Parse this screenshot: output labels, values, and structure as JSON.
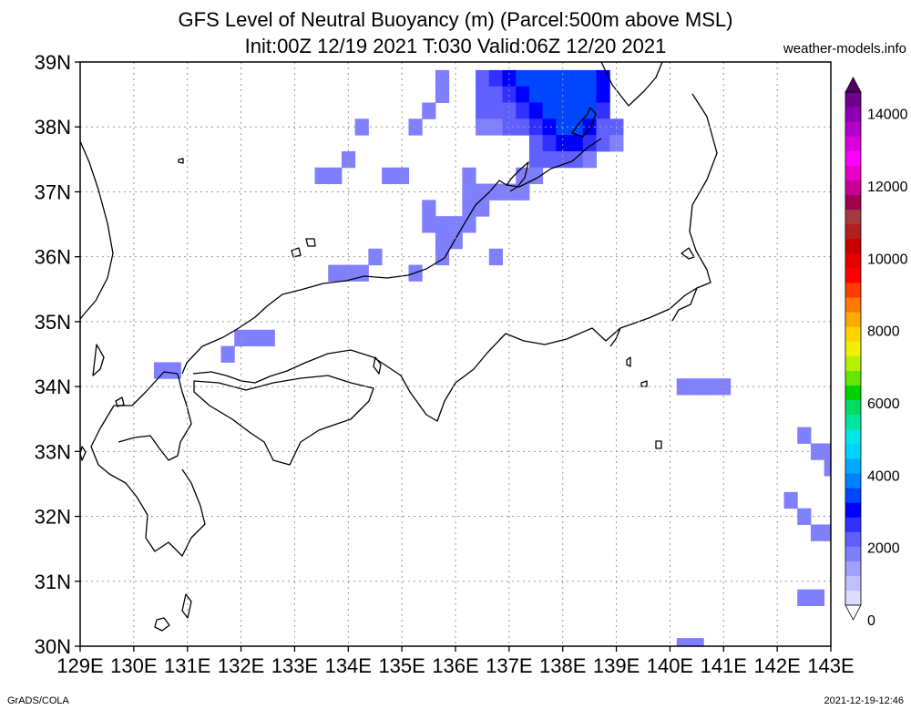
{
  "chart_data": {
    "type": "heatmap",
    "title": "GFS Level of Neutral Buoyancy (m) (Parcel:500m above MSL)",
    "subtitle": "Init:00Z 12/19 2021 T:030 Valid:06Z 12/20 2021",
    "source": "weather-models.info",
    "credit": "GrADS/COLA",
    "timestamp": "2021-12-19-12:46",
    "x_ticks": [
      "129E",
      "130E",
      "131E",
      "132E",
      "133E",
      "134E",
      "135E",
      "136E",
      "137E",
      "138E",
      "139E",
      "140E",
      "141E",
      "142E",
      "143E"
    ],
    "y_ticks": [
      "30N",
      "31N",
      "32N",
      "33N",
      "34N",
      "35N",
      "36N",
      "37N",
      "38N",
      "39N"
    ],
    "xlim": [
      129,
      143
    ],
    "ylim": [
      30,
      39
    ],
    "grid": true,
    "colorbar": {
      "ticks": [
        "0",
        "2000",
        "4000",
        "6000",
        "8000",
        "10000",
        "12000",
        "14000"
      ],
      "range": [
        0,
        15000
      ],
      "colors": [
        "#ffffff",
        "#dcdcff",
        "#c0c0ff",
        "#a0a0ff",
        "#8080ff",
        "#6060ff",
        "#3030ff",
        "#0000ff",
        "#0046ff",
        "#0082ff",
        "#00aaff",
        "#00d2ff",
        "#00e6e6",
        "#00e6a0",
        "#00dc64",
        "#00d200",
        "#64e600",
        "#b4f000",
        "#f0f000",
        "#ffd200",
        "#ffaa00",
        "#ff7800",
        "#ff3c00",
        "#ff0000",
        "#e60000",
        "#c80000",
        "#b41e1e",
        "#a03c3c",
        "#a00050",
        "#c80096",
        "#e600c8",
        "#ff00ff",
        "#dc00dc",
        "#b400c8",
        "#8c00b4",
        "#6e008c",
        "#500064"
      ]
    },
    "cells": [
      {
        "lon": 135.75,
        "lat": 38.75,
        "lev": 2000
      },
      {
        "lon": 135.75,
        "lat": 38.5,
        "lev": 2000
      },
      {
        "lon": 135.5,
        "lat": 38.25,
        "lev": 2000
      },
      {
        "lon": 134.25,
        "lat": 38.0,
        "lev": 2000
      },
      {
        "lon": 135.25,
        "lat": 38.0,
        "lev": 2000
      },
      {
        "lon": 134.0,
        "lat": 37.5,
        "lev": 2000
      },
      {
        "lon": 133.5,
        "lat": 37.25,
        "lev": 2000
      },
      {
        "lon": 133.75,
        "lat": 37.25,
        "lev": 2000
      },
      {
        "lon": 134.75,
        "lat": 37.25,
        "lev": 2000
      },
      {
        "lon": 135.0,
        "lat": 37.25,
        "lev": 2000
      },
      {
        "lon": 136.25,
        "lat": 37.25,
        "lev": 2000
      },
      {
        "lon": 136.25,
        "lat": 37.0,
        "lev": 2000
      },
      {
        "lon": 136.5,
        "lat": 37.0,
        "lev": 2000
      },
      {
        "lon": 136.75,
        "lat": 37.0,
        "lev": 2000
      },
      {
        "lon": 137.0,
        "lat": 37.0,
        "lev": 2000
      },
      {
        "lon": 137.25,
        "lat": 37.0,
        "lev": 2000
      },
      {
        "lon": 135.5,
        "lat": 36.75,
        "lev": 2000
      },
      {
        "lon": 136.25,
        "lat": 36.75,
        "lev": 2000
      },
      {
        "lon": 136.5,
        "lat": 36.75,
        "lev": 2000
      },
      {
        "lon": 135.5,
        "lat": 36.5,
        "lev": 2000
      },
      {
        "lon": 135.75,
        "lat": 36.5,
        "lev": 2000
      },
      {
        "lon": 136.0,
        "lat": 36.5,
        "lev": 2000
      },
      {
        "lon": 136.25,
        "lat": 36.5,
        "lev": 2000
      },
      {
        "lon": 135.75,
        "lat": 36.25,
        "lev": 2000
      },
      {
        "lon": 136.0,
        "lat": 36.25,
        "lev": 2000
      },
      {
        "lon": 134.5,
        "lat": 36.0,
        "lev": 2000
      },
      {
        "lon": 135.75,
        "lat": 36.0,
        "lev": 2000
      },
      {
        "lon": 136.75,
        "lat": 36.0,
        "lev": 2000
      },
      {
        "lon": 133.75,
        "lat": 35.75,
        "lev": 2000
      },
      {
        "lon": 134.0,
        "lat": 35.75,
        "lev": 2000
      },
      {
        "lon": 134.25,
        "lat": 35.75,
        "lev": 2000
      },
      {
        "lon": 135.25,
        "lat": 35.75,
        "lev": 2000
      },
      {
        "lon": 132.0,
        "lat": 34.75,
        "lev": 2000
      },
      {
        "lon": 132.25,
        "lat": 34.75,
        "lev": 2000
      },
      {
        "lon": 132.5,
        "lat": 34.75,
        "lev": 2000
      },
      {
        "lon": 131.75,
        "lat": 34.5,
        "lev": 2000
      },
      {
        "lon": 130.5,
        "lat": 34.25,
        "lev": 2000
      },
      {
        "lon": 130.75,
        "lat": 34.25,
        "lev": 2000
      },
      {
        "lon": 140.25,
        "lat": 34.0,
        "lev": 2000
      },
      {
        "lon": 140.5,
        "lat": 34.0,
        "lev": 2000
      },
      {
        "lon": 140.75,
        "lat": 34.0,
        "lev": 2000
      },
      {
        "lon": 141.0,
        "lat": 34.0,
        "lev": 2000
      },
      {
        "lon": 142.5,
        "lat": 33.25,
        "lev": 2000
      },
      {
        "lon": 142.75,
        "lat": 33.0,
        "lev": 2000
      },
      {
        "lon": 143.0,
        "lat": 33.0,
        "lev": 2000
      },
      {
        "lon": 143.0,
        "lat": 32.75,
        "lev": 2000
      },
      {
        "lon": 142.25,
        "lat": 32.25,
        "lev": 2000
      },
      {
        "lon": 142.5,
        "lat": 32.0,
        "lev": 2000
      },
      {
        "lon": 142.75,
        "lat": 31.75,
        "lev": 2000
      },
      {
        "lon": 143.0,
        "lat": 31.75,
        "lev": 2000
      },
      {
        "lon": 142.5,
        "lat": 30.75,
        "lev": 2000
      },
      {
        "lon": 142.75,
        "lat": 30.75,
        "lev": 2000
      },
      {
        "lon": 140.25,
        "lat": 30.0,
        "lev": 2000
      },
      {
        "lon": 140.5,
        "lat": 30.0,
        "lev": 2000
      },
      {
        "lon": 136.5,
        "lat": 38.75,
        "lev": 2400
      },
      {
        "lon": 136.75,
        "lat": 38.75,
        "lev": 2700
      },
      {
        "lon": 137.0,
        "lat": 38.75,
        "lev": 3000
      },
      {
        "lon": 137.25,
        "lat": 38.75,
        "lev": 3300
      },
      {
        "lon": 137.5,
        "lat": 38.75,
        "lev": 3300
      },
      {
        "lon": 137.75,
        "lat": 38.75,
        "lev": 3300
      },
      {
        "lon": 138.0,
        "lat": 38.75,
        "lev": 3300
      },
      {
        "lon": 138.25,
        "lat": 38.75,
        "lev": 3300
      },
      {
        "lon": 138.5,
        "lat": 38.75,
        "lev": 3300
      },
      {
        "lon": 138.75,
        "lat": 38.75,
        "lev": 3000
      },
      {
        "lon": 136.5,
        "lat": 38.5,
        "lev": 2400
      },
      {
        "lon": 136.75,
        "lat": 38.5,
        "lev": 2400
      },
      {
        "lon": 137.0,
        "lat": 38.5,
        "lev": 2700
      },
      {
        "lon": 137.25,
        "lat": 38.5,
        "lev": 3000
      },
      {
        "lon": 137.5,
        "lat": 38.5,
        "lev": 3300
      },
      {
        "lon": 137.75,
        "lat": 38.5,
        "lev": 3300
      },
      {
        "lon": 138.0,
        "lat": 38.5,
        "lev": 3300
      },
      {
        "lon": 138.25,
        "lat": 38.5,
        "lev": 3300
      },
      {
        "lon": 138.5,
        "lat": 38.5,
        "lev": 3300
      },
      {
        "lon": 138.75,
        "lat": 38.5,
        "lev": 3000
      },
      {
        "lon": 136.5,
        "lat": 38.25,
        "lev": 2100
      },
      {
        "lon": 136.75,
        "lat": 38.25,
        "lev": 2100
      },
      {
        "lon": 137.0,
        "lat": 38.25,
        "lev": 2400
      },
      {
        "lon": 137.25,
        "lat": 38.25,
        "lev": 2700
      },
      {
        "lon": 137.5,
        "lat": 38.25,
        "lev": 3000
      },
      {
        "lon": 137.75,
        "lat": 38.25,
        "lev": 3300
      },
      {
        "lon": 138.0,
        "lat": 38.25,
        "lev": 3300
      },
      {
        "lon": 138.25,
        "lat": 38.25,
        "lev": 3300
      },
      {
        "lon": 138.5,
        "lat": 38.25,
        "lev": 3300
      },
      {
        "lon": 138.75,
        "lat": 38.25,
        "lev": 2700
      },
      {
        "lon": 136.5,
        "lat": 38.0,
        "lev": 2000
      },
      {
        "lon": 136.75,
        "lat": 38.0,
        "lev": 2000
      },
      {
        "lon": 137.0,
        "lat": 38.0,
        "lev": 2100
      },
      {
        "lon": 137.25,
        "lat": 38.0,
        "lev": 2400
      },
      {
        "lon": 137.5,
        "lat": 38.0,
        "lev": 2700
      },
      {
        "lon": 137.75,
        "lat": 38.0,
        "lev": 3000
      },
      {
        "lon": 138.0,
        "lat": 38.0,
        "lev": 3300
      },
      {
        "lon": 138.25,
        "lat": 38.0,
        "lev": 3300
      },
      {
        "lon": 138.5,
        "lat": 38.0,
        "lev": 3000
      },
      {
        "lon": 138.75,
        "lat": 38.0,
        "lev": 2400
      },
      {
        "lon": 139.0,
        "lat": 38.0,
        "lev": 2100
      },
      {
        "lon": 137.5,
        "lat": 37.75,
        "lev": 2400
      },
      {
        "lon": 137.75,
        "lat": 37.75,
        "lev": 2700
      },
      {
        "lon": 138.0,
        "lat": 37.75,
        "lev": 3000
      },
      {
        "lon": 138.25,
        "lat": 37.75,
        "lev": 3000
      },
      {
        "lon": 138.5,
        "lat": 37.75,
        "lev": 2700
      },
      {
        "lon": 138.75,
        "lat": 37.75,
        "lev": 2100
      },
      {
        "lon": 139.0,
        "lat": 37.75,
        "lev": 2000
      },
      {
        "lon": 137.5,
        "lat": 37.5,
        "lev": 2100
      },
      {
        "lon": 137.75,
        "lat": 37.5,
        "lev": 2400
      },
      {
        "lon": 138.0,
        "lat": 37.5,
        "lev": 2400
      },
      {
        "lon": 138.25,
        "lat": 37.5,
        "lev": 2100
      },
      {
        "lon": 138.5,
        "lat": 37.5,
        "lev": 2000
      },
      {
        "lon": 137.25,
        "lat": 37.25,
        "lev": 2000
      },
      {
        "lon": 137.5,
        "lat": 37.25,
        "lev": 2000
      }
    ]
  }
}
